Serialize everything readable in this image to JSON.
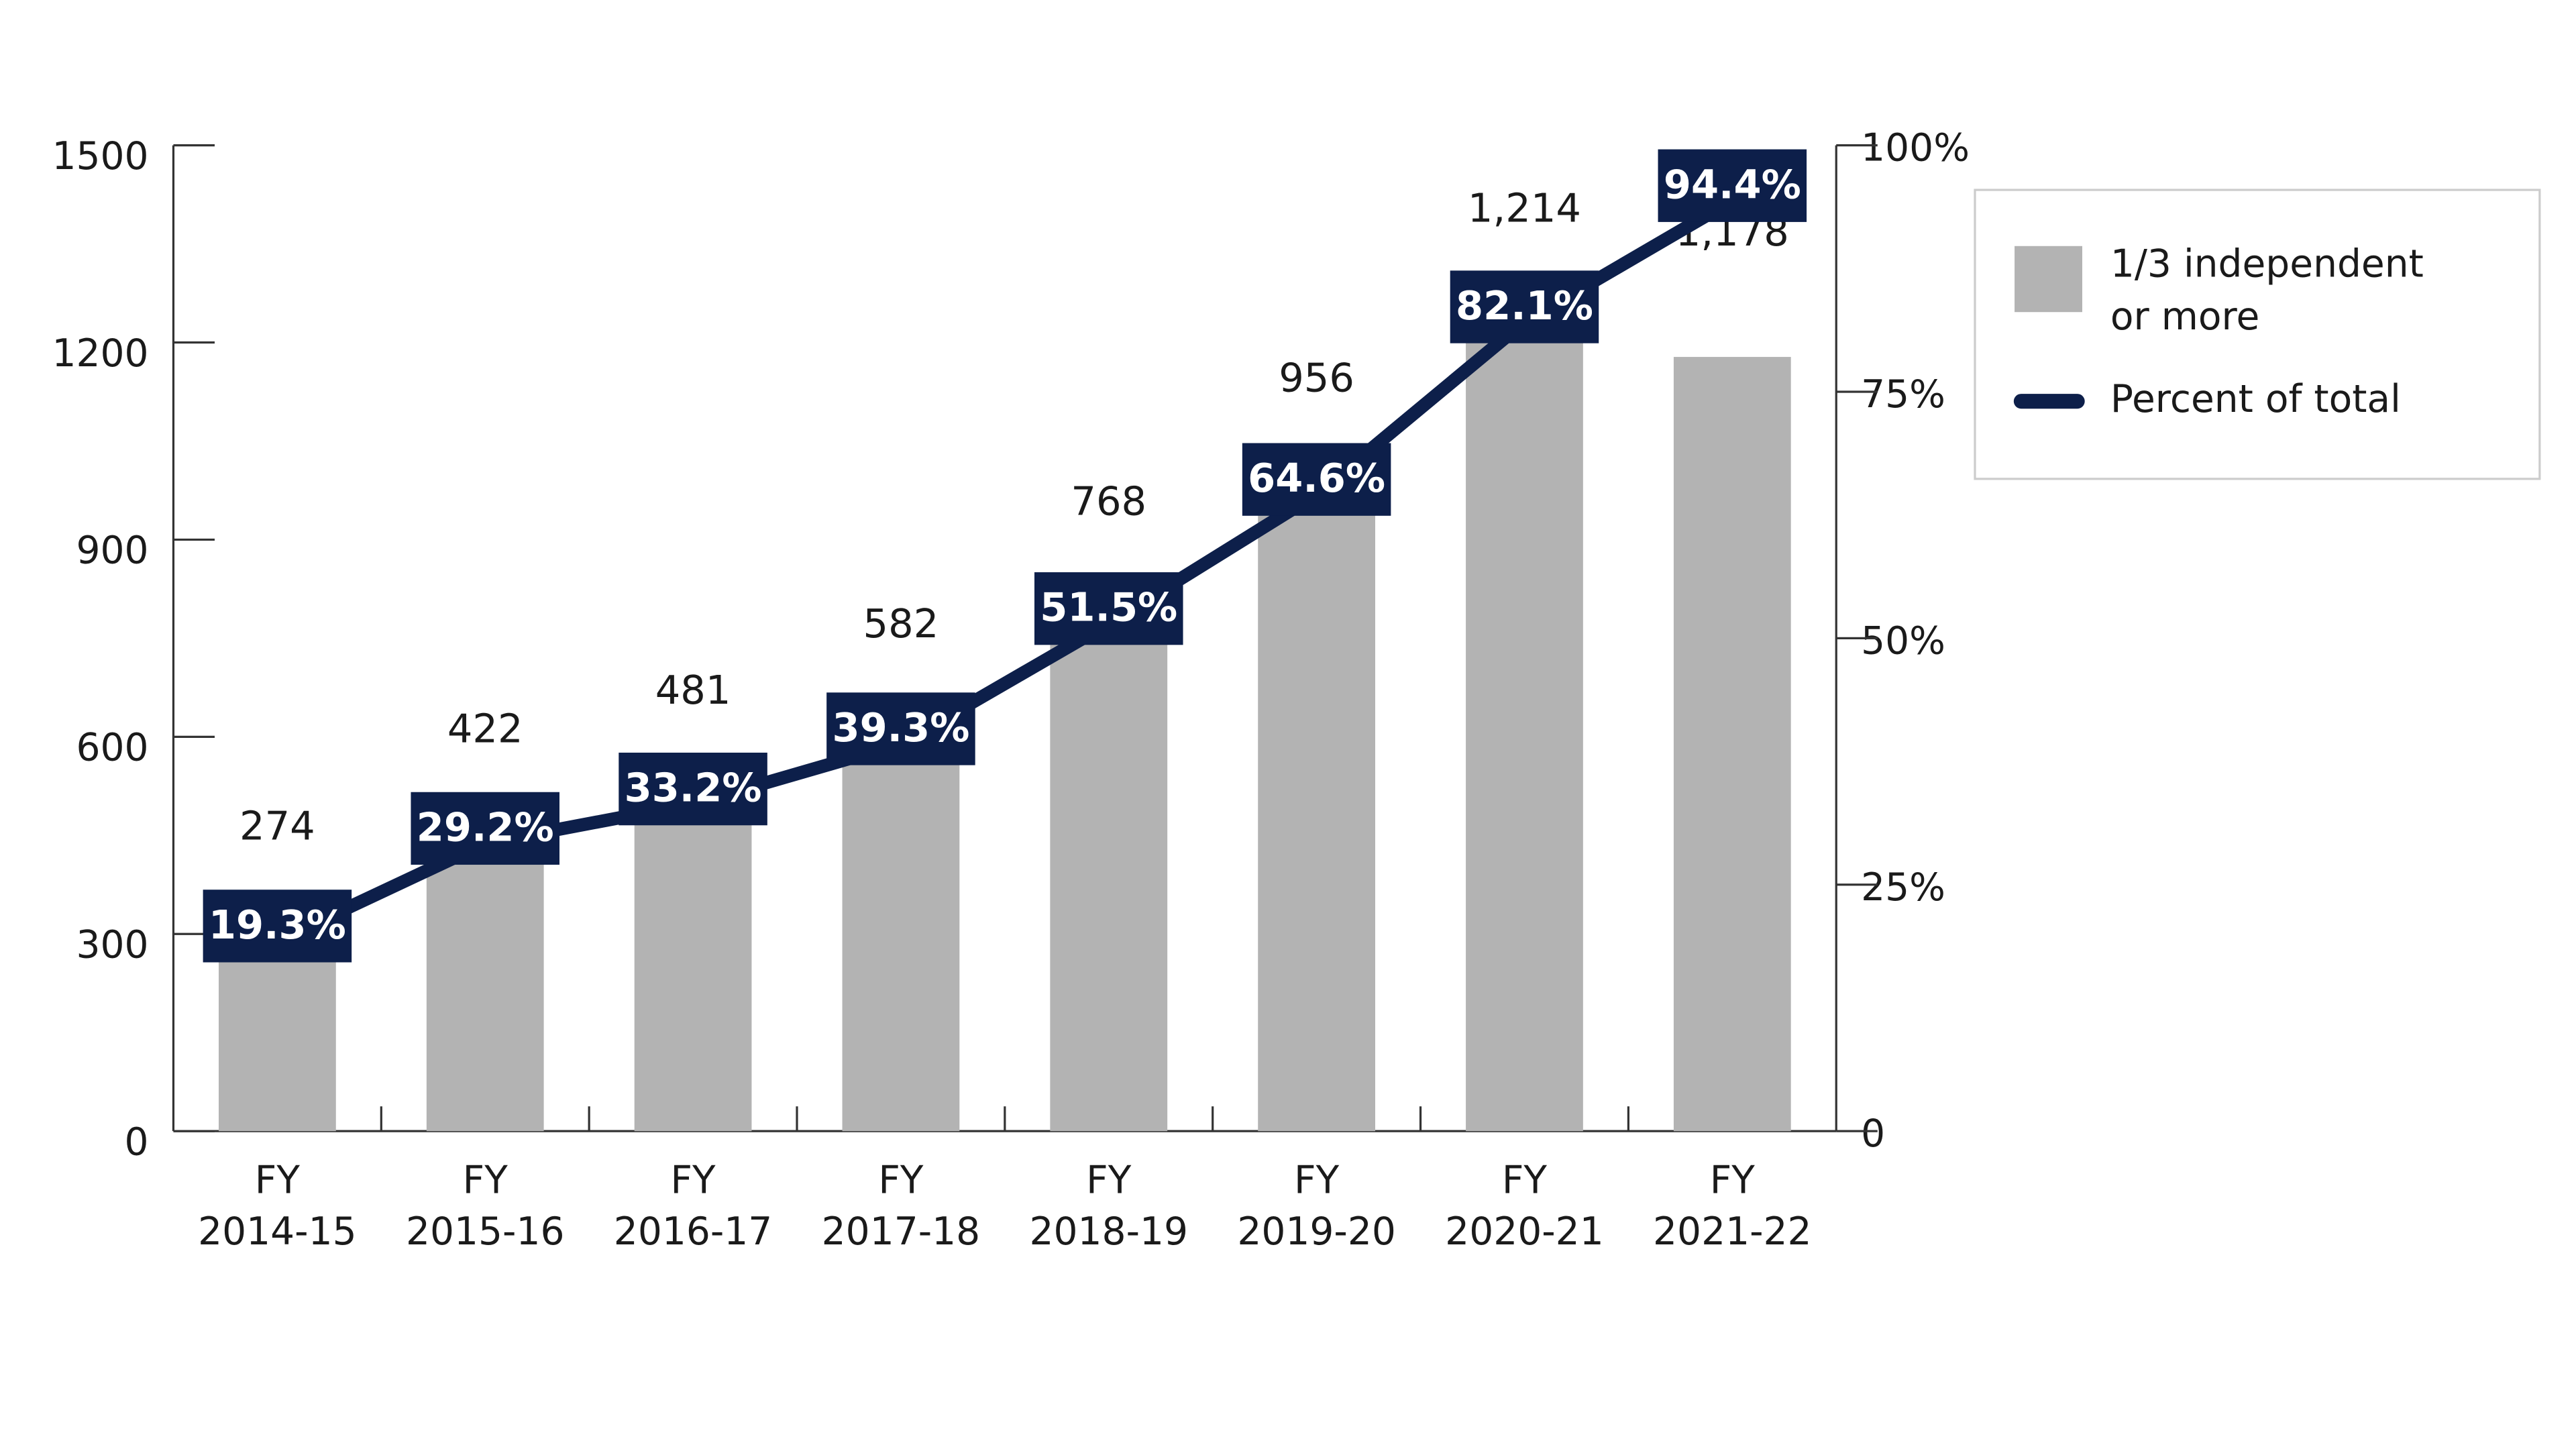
{
  "chart_data": {
    "type": "bar-line",
    "categories": [
      "FY 2014-15",
      "FY 2015-16",
      "FY 2016-17",
      "FY 2017-18",
      "FY 2018-19",
      "FY 2019-20",
      "FY 2020-21",
      "FY 2021-22"
    ],
    "series": [
      {
        "name": "1/3 independent or more",
        "color": "#b3b3b3",
        "type": "bar",
        "values": [
          274,
          422,
          481,
          582,
          768,
          956,
          1214,
          1178
        ],
        "value_labels": [
          "274",
          "422",
          "481",
          "582",
          "768",
          "956",
          "1,214",
          "1,178"
        ]
      },
      {
        "name": "Percent of total",
        "color": "#0d1f4a",
        "type": "line",
        "axis": "y2",
        "values": [
          19.3,
          29.2,
          33.2,
          39.3,
          51.5,
          64.6,
          82.1,
          94.4
        ],
        "value_labels": [
          "19.3%",
          "29.2%",
          "33.2%",
          "39.3%",
          "51.5%",
          "64.6%",
          "82.1%",
          "94.4%"
        ]
      }
    ],
    "ylim": [
      0,
      1500
    ],
    "yticks": [
      0,
      300,
      600,
      900,
      1200,
      1500
    ],
    "y2lim": [
      0,
      100
    ],
    "y2ticks": [
      0,
      {
        "value": 25,
        "label": "25%"
      },
      {
        "value": 50,
        "label": "50%"
      },
      {
        "value": 75,
        "label": "75%"
      },
      {
        "value": 100,
        "label": "100%"
      }
    ],
    "legend": "right",
    "grid": false
  }
}
